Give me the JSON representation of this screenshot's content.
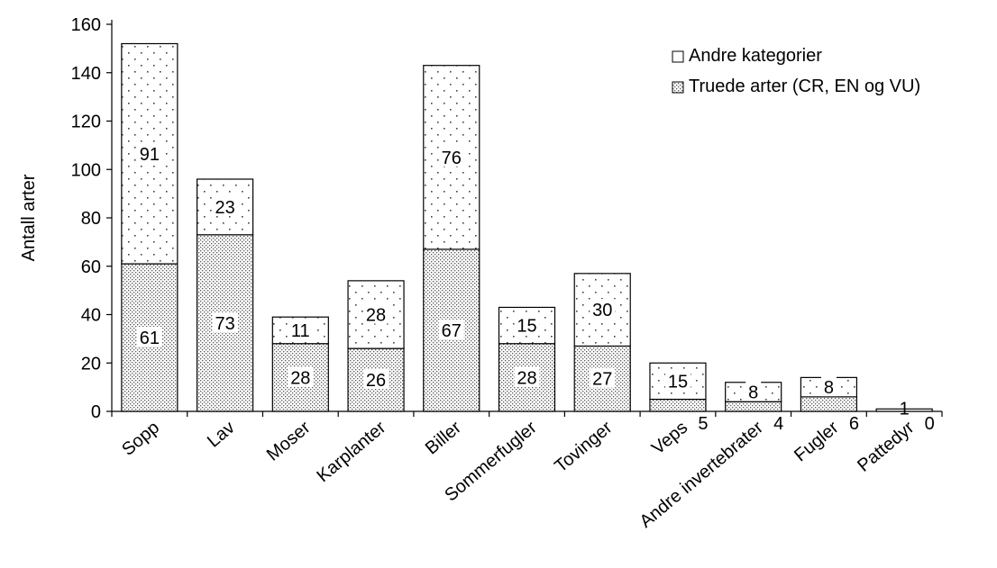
{
  "chart_data": {
    "type": "bar",
    "stacked": true,
    "ylabel": "Antall arter",
    "xlabel": "",
    "ylim": [
      0,
      160
    ],
    "yticks": [
      0,
      20,
      40,
      60,
      80,
      100,
      120,
      140,
      160
    ],
    "grid": false,
    "legend_position": "top-right",
    "categories": [
      "Sopp",
      "Lav",
      "Moser",
      "Karplanter",
      "Biller",
      "Sommerfugler",
      "Tovinger",
      "Veps",
      "Andre invertebrater",
      "Fugler",
      "Pattedyr"
    ],
    "series": [
      {
        "name": "Truede arter (CR, EN og VU)",
        "pattern": "dense-dots",
        "values": [
          61,
          73,
          28,
          26,
          67,
          28,
          27,
          5,
          4,
          6,
          0
        ]
      },
      {
        "name": "Andre kategorier",
        "pattern": "sparse-dots",
        "values": [
          91,
          23,
          11,
          28,
          76,
          15,
          30,
          15,
          8,
          8,
          1
        ]
      }
    ],
    "legend_order": [
      "Andre kategorier",
      "Truede arter (CR, EN og VU)"
    ]
  }
}
